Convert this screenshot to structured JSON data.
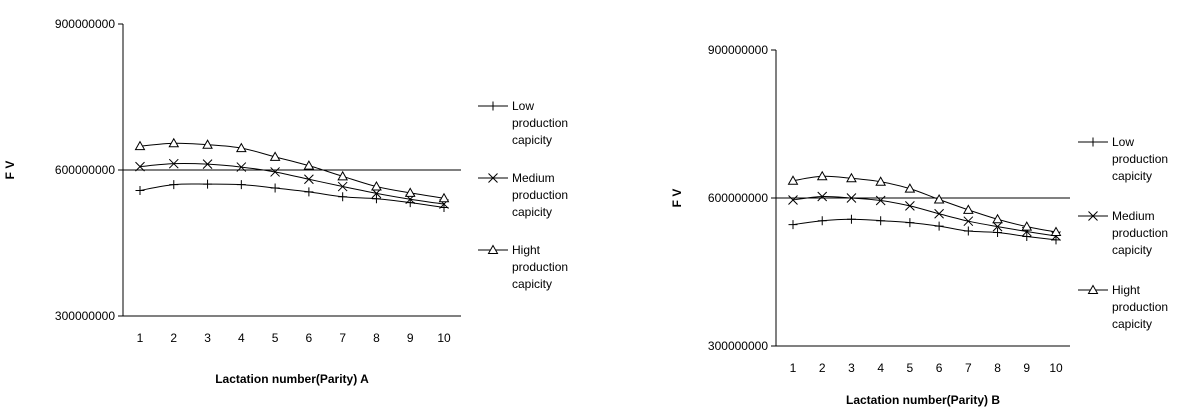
{
  "chart_data": [
    {
      "type": "line",
      "title": "",
      "xlabel": "Lactation number(Parity)   A",
      "ylabel": "F V",
      "x": [
        1,
        2,
        3,
        4,
        5,
        6,
        7,
        8,
        9,
        10
      ],
      "ylim": [
        300000000,
        900000000
      ],
      "yticks": [
        "300000000",
        "600000000",
        "900000000"
      ],
      "grid": "horizontal line at 600000000",
      "legend_position": "right",
      "series": [
        {
          "name": "Low production capicity",
          "marker": "plus",
          "values": [
            558000000,
            570000000,
            571000000,
            570000000,
            563000000,
            555000000,
            545000000,
            541000000,
            533000000,
            523000000
          ]
        },
        {
          "name": "Medium production capicity",
          "marker": "x",
          "values": [
            607000000,
            613000000,
            612000000,
            606000000,
            596000000,
            581000000,
            566000000,
            552000000,
            540000000,
            530000000
          ]
        },
        {
          "name": "Hight production capicity",
          "marker": "triangle",
          "values": [
            649000000,
            655000000,
            652000000,
            645000000,
            627000000,
            609000000,
            587000000,
            566000000,
            553000000,
            542000000
          ]
        }
      ]
    },
    {
      "type": "line",
      "title": "",
      "xlabel": "Lactation number(Parity)  B",
      "ylabel": "F V",
      "x": [
        1,
        2,
        3,
        4,
        5,
        6,
        7,
        8,
        9,
        10
      ],
      "ylim": [
        300000000,
        900000000
      ],
      "yticks": [
        "300000000",
        "600000000",
        "900000000"
      ],
      "grid": "horizontal line at 600000000",
      "legend_position": "right",
      "series": [
        {
          "name": "Low production capicity",
          "marker": "plus",
          "values": [
            546000000,
            554000000,
            557000000,
            554000000,
            550000000,
            543000000,
            533000000,
            530000000,
            522000000,
            515000000
          ]
        },
        {
          "name": "Medium production capicity",
          "marker": "x",
          "values": [
            596000000,
            603000000,
            600000000,
            595000000,
            584000000,
            568000000,
            553000000,
            542000000,
            532000000,
            523000000
          ]
        },
        {
          "name": "Hight production capicity",
          "marker": "triangle",
          "values": [
            635000000,
            644000000,
            640000000,
            633000000,
            619000000,
            597000000,
            576000000,
            557000000,
            542000000,
            531000000
          ]
        }
      ]
    }
  ]
}
